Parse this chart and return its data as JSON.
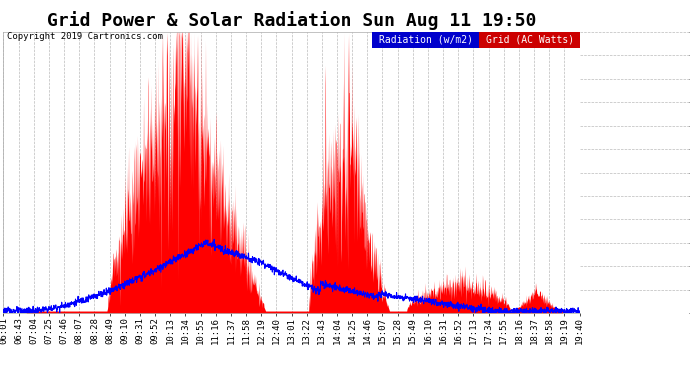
{
  "title": "Grid Power & Solar Radiation Sun Aug 11 19:50",
  "copyright": "Copyright 2019 Cartronics.com",
  "legend_radiation": "Radiation (w/m2)",
  "legend_grid": "Grid (AC Watts)",
  "bg_color": "#ffffff",
  "plot_bg_color": "#ffffff",
  "text_color": "#000000",
  "grid_color": "#aaaaaa",
  "radiation_color": "#0000ff",
  "grid_ac_color": "#ff0000",
  "ymin": -23.0,
  "ymax": 3064.0,
  "yticks": [
    -23.0,
    234.2,
    491.5,
    748.7,
    1006.0,
    1263.2,
    1520.5,
    1777.7,
    2035.0,
    2292.2,
    2549.5,
    2806.7,
    3064.0
  ],
  "xtick_labels": [
    "06:01",
    "06:43",
    "07:04",
    "07:25",
    "07:46",
    "08:07",
    "08:28",
    "08:49",
    "09:10",
    "09:31",
    "09:52",
    "10:13",
    "10:34",
    "10:55",
    "11:16",
    "11:37",
    "11:58",
    "12:19",
    "12:40",
    "13:01",
    "13:22",
    "13:43",
    "14:04",
    "14:25",
    "14:46",
    "15:07",
    "15:28",
    "15:49",
    "16:10",
    "16:31",
    "16:52",
    "17:13",
    "17:34",
    "17:55",
    "18:16",
    "18:37",
    "18:58",
    "19:19",
    "19:40"
  ],
  "title_fontsize": 13,
  "tick_fontsize": 6.5,
  "copyright_fontsize": 6.5,
  "legend_fontsize": 7
}
